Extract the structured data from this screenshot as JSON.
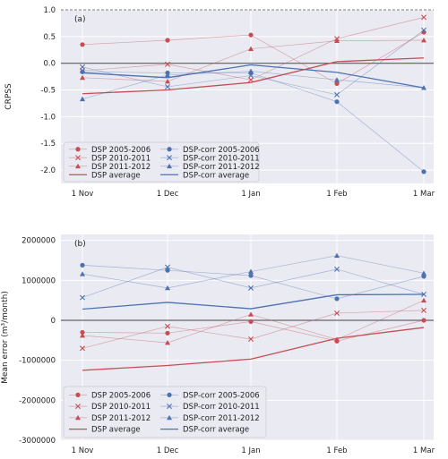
{
  "chart_data": [
    {
      "type": "line",
      "panel_label": "(a)",
      "ylabel": "CRPSS",
      "categories": [
        "1 Nov",
        "1 Dec",
        "1 Jan",
        "1 Feb",
        "1 Mar"
      ],
      "ylim": [
        -2.25,
        1.0
      ],
      "yticks": [
        1.0,
        0.5,
        0.0,
        -0.5,
        -1.0,
        -1.5,
        -2.0
      ],
      "ytick_labels": [
        "1.0",
        "0.5",
        "0.0",
        "-0.5",
        "-1.0",
        "-1.5",
        "-2.0"
      ],
      "grid": true,
      "legend_position": "lower-left",
      "series": [
        {
          "name": "DSP 2005-2006",
          "color": "#c44e52",
          "marker": "circle",
          "values": [
            0.35,
            0.43,
            0.53,
            -0.38,
            0.58
          ]
        },
        {
          "name": "DSP 2010-2011",
          "color": "#c44e52",
          "marker": "x",
          "values": [
            -0.14,
            -0.02,
            -0.31,
            0.46,
            0.86
          ]
        },
        {
          "name": "DSP 2011-2012",
          "color": "#c44e52",
          "marker": "triangle",
          "values": [
            -0.27,
            -0.34,
            0.27,
            0.42,
            0.43
          ]
        },
        {
          "name": "DSP average",
          "color": "#c44e52",
          "marker": "none",
          "values": [
            -0.57,
            -0.5,
            -0.36,
            0.03,
            0.1
          ]
        },
        {
          "name": "DSP-corr 2005-2006",
          "color": "#4c72b0",
          "marker": "circle",
          "values": [
            -0.16,
            -0.18,
            -0.18,
            -0.72,
            -2.03
          ]
        },
        {
          "name": "DSP-corr 2010-2011",
          "color": "#4c72b0",
          "marker": "x",
          "values": [
            -0.07,
            -0.44,
            -0.23,
            -0.59,
            0.62
          ]
        },
        {
          "name": "DSP-corr 2011-2012",
          "color": "#4c72b0",
          "marker": "triangle",
          "values": [
            -0.67,
            -0.22,
            -0.15,
            -0.31,
            -0.46
          ]
        },
        {
          "name": "DSP-corr average",
          "color": "#4c72b0",
          "marker": "none",
          "values": [
            -0.18,
            -0.27,
            -0.03,
            -0.17,
            -0.46
          ]
        }
      ]
    },
    {
      "type": "line",
      "panel_label": "(b)",
      "ylabel": "Mean error (m³/month)",
      "categories": [
        "1 Nov",
        "1 Dec",
        "1 Jan",
        "1 Feb",
        "1 Mar"
      ],
      "ylim": [
        -3000000,
        2150000
      ],
      "yticks": [
        2000000,
        1000000,
        0,
        -1000000,
        -2000000,
        -3000000
      ],
      "ytick_labels": [
        "2000000",
        "1000000",
        "0",
        "-1000000",
        "-2000000",
        "-3000000"
      ],
      "grid": true,
      "legend_position": "lower-left",
      "series": [
        {
          "name": "DSP 2005-2006",
          "color": "#c44e52",
          "marker": "circle",
          "values": [
            -300000,
            -320000,
            -30000,
            -520000,
            0
          ]
        },
        {
          "name": "DSP 2010-2011",
          "color": "#c44e52",
          "marker": "x",
          "values": [
            -700000,
            -150000,
            -470000,
            180000,
            250000
          ]
        },
        {
          "name": "DSP 2011-2012",
          "color": "#c44e52",
          "marker": "triangle",
          "values": [
            -380000,
            -560000,
            150000,
            -480000,
            500000
          ]
        },
        {
          "name": "DSP average",
          "color": "#c44e52",
          "marker": "none",
          "values": [
            -1250000,
            -1130000,
            -970000,
            -450000,
            -180000
          ]
        },
        {
          "name": "DSP-corr 2005-2006",
          "color": "#4c72b0",
          "marker": "circle",
          "values": [
            1380000,
            1250000,
            1120000,
            540000,
            1100000
          ]
        },
        {
          "name": "DSP-corr 2010-2011",
          "color": "#4c72b0",
          "marker": "x",
          "values": [
            570000,
            1330000,
            810000,
            1280000,
            650000
          ]
        },
        {
          "name": "DSP-corr 2011-2012",
          "color": "#4c72b0",
          "marker": "triangle",
          "values": [
            1160000,
            810000,
            1220000,
            1620000,
            1180000
          ]
        },
        {
          "name": "DSP-corr average",
          "color": "#4c72b0",
          "marker": "none",
          "values": [
            280000,
            450000,
            290000,
            640000,
            650000
          ]
        }
      ]
    }
  ]
}
